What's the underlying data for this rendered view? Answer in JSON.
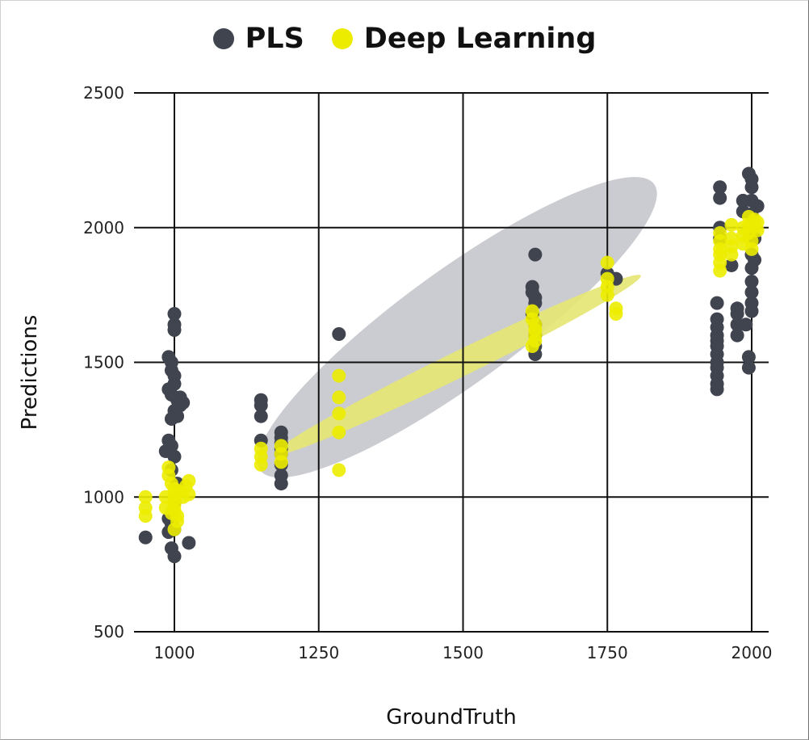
{
  "chart_data": {
    "type": "scatter",
    "title": "",
    "xlabel": "GroundTruth",
    "ylabel": "Predictions",
    "xlim": [
      935,
      2030
    ],
    "ylim": [
      500,
      2500
    ],
    "x_ticks": [
      1000,
      1250,
      1500,
      1750,
      2000
    ],
    "y_ticks": [
      500,
      1000,
      1500,
      2000,
      2500
    ],
    "grid": true,
    "legend_position": "top-center",
    "series": [
      {
        "name": "PLS",
        "color": "#40444f",
        "points": [
          [
            950,
            850
          ],
          [
            990,
            1520
          ],
          [
            995,
            1500
          ],
          [
            1000,
            1680
          ],
          [
            1000,
            1640
          ],
          [
            1000,
            1620
          ],
          [
            995,
            1470
          ],
          [
            1000,
            1450
          ],
          [
            1000,
            1420
          ],
          [
            990,
            1400
          ],
          [
            995,
            1380
          ],
          [
            1005,
            1360
          ],
          [
            1010,
            1340
          ],
          [
            1000,
            1320
          ],
          [
            1005,
            1300
          ],
          [
            995,
            1290
          ],
          [
            990,
            1210
          ],
          [
            995,
            1190
          ],
          [
            985,
            1170
          ],
          [
            1000,
            1150
          ],
          [
            995,
            1100
          ],
          [
            1005,
            1050
          ],
          [
            1000,
            980
          ],
          [
            995,
            940
          ],
          [
            990,
            920
          ],
          [
            995,
            900
          ],
          [
            1000,
            880
          ],
          [
            990,
            870
          ],
          [
            995,
            810
          ],
          [
            1000,
            780
          ],
          [
            1025,
            830
          ],
          [
            1010,
            1370
          ],
          [
            1015,
            1350
          ],
          [
            1150,
            1360
          ],
          [
            1150,
            1340
          ],
          [
            1150,
            1300
          ],
          [
            1150,
            1210
          ],
          [
            1185,
            1240
          ],
          [
            1185,
            1220
          ],
          [
            1185,
            1200
          ],
          [
            1185,
            1180
          ],
          [
            1185,
            1160
          ],
          [
            1185,
            1120
          ],
          [
            1185,
            1080
          ],
          [
            1185,
            1050
          ],
          [
            1285,
            1605
          ],
          [
            1625,
            1900
          ],
          [
            1620,
            1780
          ],
          [
            1620,
            1760
          ],
          [
            1625,
            1740
          ],
          [
            1625,
            1720
          ],
          [
            1620,
            1680
          ],
          [
            1625,
            1640
          ],
          [
            1625,
            1600
          ],
          [
            1625,
            1560
          ],
          [
            1625,
            1530
          ],
          [
            1750,
            1830
          ],
          [
            1765,
            1810
          ],
          [
            1945,
            2150
          ],
          [
            1945,
            2110
          ],
          [
            1945,
            2000
          ],
          [
            1945,
            1960
          ],
          [
            1940,
            1720
          ],
          [
            1940,
            1660
          ],
          [
            1940,
            1630
          ],
          [
            1940,
            1600
          ],
          [
            1940,
            1580
          ],
          [
            1940,
            1560
          ],
          [
            1940,
            1530
          ],
          [
            1940,
            1500
          ],
          [
            1940,
            1480
          ],
          [
            1940,
            1450
          ],
          [
            1940,
            1420
          ],
          [
            1940,
            1400
          ],
          [
            1965,
            1860
          ],
          [
            1975,
            1700
          ],
          [
            1975,
            1680
          ],
          [
            1975,
            1640
          ],
          [
            1975,
            1600
          ],
          [
            1985,
            2100
          ],
          [
            1985,
            2060
          ],
          [
            1990,
            1640
          ],
          [
            1995,
            2200
          ],
          [
            2000,
            2180
          ],
          [
            2000,
            2150
          ],
          [
            2000,
            2100
          ],
          [
            2000,
            2050
          ],
          [
            2000,
            1900
          ],
          [
            2000,
            1850
          ],
          [
            2000,
            1800
          ],
          [
            2000,
            1760
          ],
          [
            2000,
            1720
          ],
          [
            2000,
            1690
          ],
          [
            1995,
            1520
          ],
          [
            1995,
            1480
          ],
          [
            2005,
            1960
          ],
          [
            2005,
            1880
          ],
          [
            2010,
            2080
          ]
        ]
      },
      {
        "name": "Deep Learning",
        "color": "#ecec00",
        "points": [
          [
            950,
            1000
          ],
          [
            950,
            960
          ],
          [
            950,
            930
          ],
          [
            990,
            1110
          ],
          [
            990,
            1080
          ],
          [
            995,
            1050
          ],
          [
            1000,
            1030
          ],
          [
            1000,
            1010
          ],
          [
            1000,
            990
          ],
          [
            1000,
            970
          ],
          [
            1000,
            950
          ],
          [
            1005,
            930
          ],
          [
            1005,
            910
          ],
          [
            1000,
            880
          ],
          [
            1010,
            1020
          ],
          [
            1015,
            1000
          ],
          [
            1020,
            1040
          ],
          [
            1025,
            1060
          ],
          [
            1025,
            1010
          ],
          [
            985,
            1000
          ],
          [
            985,
            960
          ],
          [
            995,
            940
          ],
          [
            1150,
            1180
          ],
          [
            1150,
            1150
          ],
          [
            1150,
            1120
          ],
          [
            1185,
            1190
          ],
          [
            1185,
            1160
          ],
          [
            1185,
            1130
          ],
          [
            1285,
            1450
          ],
          [
            1285,
            1370
          ],
          [
            1285,
            1310
          ],
          [
            1285,
            1240
          ],
          [
            1285,
            1100
          ],
          [
            1620,
            1690
          ],
          [
            1620,
            1660
          ],
          [
            1625,
            1640
          ],
          [
            1625,
            1620
          ],
          [
            1625,
            1600
          ],
          [
            1625,
            1580
          ],
          [
            1620,
            1560
          ],
          [
            1750,
            1870
          ],
          [
            1750,
            1810
          ],
          [
            1750,
            1780
          ],
          [
            1750,
            1750
          ],
          [
            1765,
            1700
          ],
          [
            1765,
            1680
          ],
          [
            1945,
            1980
          ],
          [
            1945,
            1950
          ],
          [
            1945,
            1920
          ],
          [
            1945,
            1900
          ],
          [
            1945,
            1870
          ],
          [
            1945,
            1840
          ],
          [
            1965,
            2010
          ],
          [
            1965,
            1960
          ],
          [
            1965,
            1930
          ],
          [
            1965,
            1900
          ],
          [
            1985,
            2000
          ],
          [
            1985,
            1970
          ],
          [
            1985,
            1940
          ],
          [
            1995,
            2040
          ],
          [
            1995,
            2010
          ],
          [
            1995,
            1980
          ],
          [
            2000,
            1950
          ],
          [
            2000,
            1920
          ],
          [
            2005,
            2030
          ],
          [
            2005,
            2000
          ],
          [
            2010,
            1990
          ],
          [
            2010,
            2020
          ]
        ]
      }
    ],
    "ellipses": [
      {
        "series": "PLS",
        "color": "#cbccd1",
        "cx": 1490,
        "cy": 1630,
        "rx": 620,
        "ry": 210,
        "angle_deg": -36
      },
      {
        "series": "Deep Learning",
        "color": "#e6e675",
        "cx": 1490,
        "cy": 1490,
        "rx": 520,
        "ry": 48,
        "angle_deg": -26
      }
    ]
  }
}
